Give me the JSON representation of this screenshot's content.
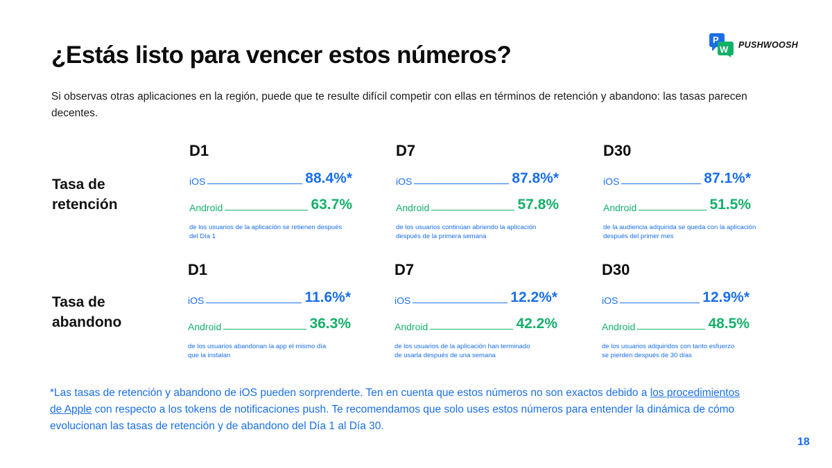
{
  "logo": {
    "text": "PUSHWOOSH",
    "mark_letters": "PW",
    "colors": {
      "blue": "#1a6fe8",
      "green": "#14b06a"
    }
  },
  "title": "¿Estás listo para vencer estos números?",
  "intro": "Si observas otras aplicaciones en la región, puede que te resulte difícil competir con ellas en términos de retención y abandono: las tasas parecen decentes.",
  "rows": [
    {
      "label": "Tasa de retención",
      "blocks": [
        {
          "day": "D1",
          "ios_label": "iOS",
          "ios_value": "88.4%*",
          "android_label": "Android",
          "android_value": "63.7%",
          "desc": "de los usuarios de la aplicación se retienen después del Día 1"
        },
        {
          "day": "D7",
          "ios_label": "iOS",
          "ios_value": "87.8%*",
          "android_label": "Android",
          "android_value": "57.8%",
          "desc": "de los usuarios continúan abriendo la aplicación después de la primera semana"
        },
        {
          "day": "D30",
          "ios_label": "iOS",
          "ios_value": "87.1%*",
          "android_label": "Android",
          "android_value": "51.5%",
          "desc": "de la audiencia adquirida se queda con la aplicación después del primer mes"
        }
      ]
    },
    {
      "label": "Tasa de abandono",
      "blocks": [
        {
          "day": "D1",
          "ios_label": "iOS",
          "ios_value": "11.6%*",
          "android_label": "Android",
          "android_value": "36.3%",
          "desc": "de los usuarios abandonan la app el mismo día que la instalan"
        },
        {
          "day": "D7",
          "ios_label": "iOS",
          "ios_value": "12.2%*",
          "android_label": "Android",
          "android_value": "42.2%",
          "desc": "de los usuarios de la aplicación han terminado de usarla después de una semana"
        },
        {
          "day": "D30",
          "ios_label": "iOS",
          "ios_value": "12.9%*",
          "android_label": "Android",
          "android_value": "48.5%",
          "desc": "de los usuarios adquiridos con tanto esfuerzo se pierden después de 30 días"
        }
      ]
    }
  ],
  "footnote": {
    "before": "*Las tasas de retención y abandono de iOS pueden sorprenderte. Ten en cuenta que estos números no son exactos debido a ",
    "link": "los procedimientos de Apple",
    "after": " con respecto a los tokens de notificaciones push. Te recomendamos que solo uses estos números para entender la dinámica de cómo evolucionan las tasas de retención y de abandono del Día 1 al Día 30."
  },
  "page_number": "18",
  "colors": {
    "ios": "#1a6fe8",
    "android": "#14b06a",
    "text": "#111111"
  }
}
